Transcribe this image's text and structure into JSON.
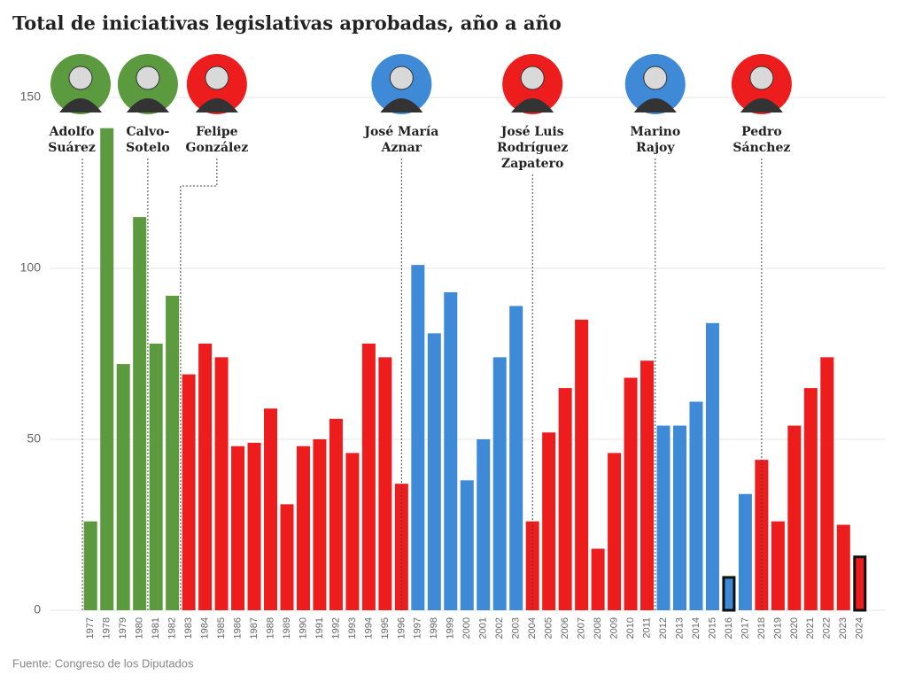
{
  "chart_data": {
    "type": "bar",
    "title": "Total de iniciativas legislativas aprobadas, año a año",
    "source": "Fuente: Congreso de los Diputados",
    "categories": [
      "1977",
      "1978",
      "1979",
      "1980",
      "1981",
      "1982",
      "1983",
      "1984",
      "1985",
      "1986",
      "1987",
      "1988",
      "1989",
      "1990",
      "1991",
      "1992",
      "1993",
      "1994",
      "1995",
      "1996",
      "1997",
      "1998",
      "1999",
      "2000",
      "2001",
      "2002",
      "2003",
      "2004",
      "2005",
      "2006",
      "2007",
      "2008",
      "2009",
      "2010",
      "2011",
      "2012",
      "2013",
      "2014",
      "2015",
      "2016",
      "2017",
      "2018",
      "2019",
      "2020",
      "2021",
      "2022",
      "2023",
      "2024"
    ],
    "values": [
      26,
      141,
      72,
      115,
      78,
      92,
      69,
      78,
      74,
      48,
      49,
      59,
      31,
      48,
      50,
      56,
      46,
      78,
      74,
      37,
      101,
      81,
      93,
      38,
      50,
      74,
      89,
      26,
      52,
      65,
      85,
      18,
      46,
      68,
      73,
      54,
      54,
      61,
      84,
      10,
      34,
      44,
      26,
      54,
      65,
      74,
      25,
      16
    ],
    "colors": [
      "#5b9a3e",
      "#5b9a3e",
      "#5b9a3e",
      "#5b9a3e",
      "#5b9a3e",
      "#5b9a3e",
      "#ee1d1d",
      "#ee1d1d",
      "#ee1d1d",
      "#ee1d1d",
      "#ee1d1d",
      "#ee1d1d",
      "#ee1d1d",
      "#ee1d1d",
      "#ee1d1d",
      "#ee1d1d",
      "#ee1d1d",
      "#ee1d1d",
      "#ee1d1d",
      "#ee1d1d",
      "#3e8ad6",
      "#3e8ad6",
      "#3e8ad6",
      "#3e8ad6",
      "#3e8ad6",
      "#3e8ad6",
      "#3e8ad6",
      "#ee1d1d",
      "#ee1d1d",
      "#ee1d1d",
      "#ee1d1d",
      "#ee1d1d",
      "#ee1d1d",
      "#ee1d1d",
      "#ee1d1d",
      "#3e8ad6",
      "#3e8ad6",
      "#3e8ad6",
      "#3e8ad6",
      "#3e8ad6",
      "#3e8ad6",
      "#ee1d1d",
      "#ee1d1d",
      "#ee1d1d",
      "#ee1d1d",
      "#ee1d1d",
      "#ee1d1d",
      "#ee1d1d"
    ],
    "edgecolors": [
      null,
      null,
      null,
      null,
      null,
      null,
      null,
      null,
      null,
      null,
      null,
      null,
      null,
      null,
      null,
      null,
      null,
      null,
      null,
      null,
      null,
      null,
      null,
      null,
      null,
      null,
      null,
      null,
      null,
      null,
      null,
      null,
      null,
      null,
      null,
      null,
      null,
      null,
      null,
      "#111111",
      null,
      null,
      null,
      null,
      null,
      null,
      null,
      "#111111"
    ],
    "ylim": [
      0,
      150
    ],
    "yticks": [
      0,
      50,
      100,
      150
    ],
    "grid": true,
    "annotations": [
      {
        "lines": [
          "Adolfo",
          "Suárez"
        ],
        "category": "1977",
        "color": "#5b9a3e"
      },
      {
        "lines": [
          "Calvo-",
          "Sotelo"
        ],
        "category": "1981",
        "color": "#5b9a3e"
      },
      {
        "lines": [
          "Felipe",
          "González"
        ],
        "category": "1983",
        "color": "#ee1d1d"
      },
      {
        "lines": [
          "José María",
          "Aznar"
        ],
        "category": "1996",
        "color": "#3e8ad6"
      },
      {
        "lines": [
          "José Luis",
          "Rodríguez",
          "Zapatero"
        ],
        "category": "2004",
        "color": "#ee1d1d"
      },
      {
        "lines": [
          "Marino",
          "Rajoy"
        ],
        "category": "2012",
        "color": "#3e8ad6"
      },
      {
        "lines": [
          "Pedro",
          "Sánchez"
        ],
        "category": "2018",
        "color": "#ee1d1d"
      }
    ]
  }
}
